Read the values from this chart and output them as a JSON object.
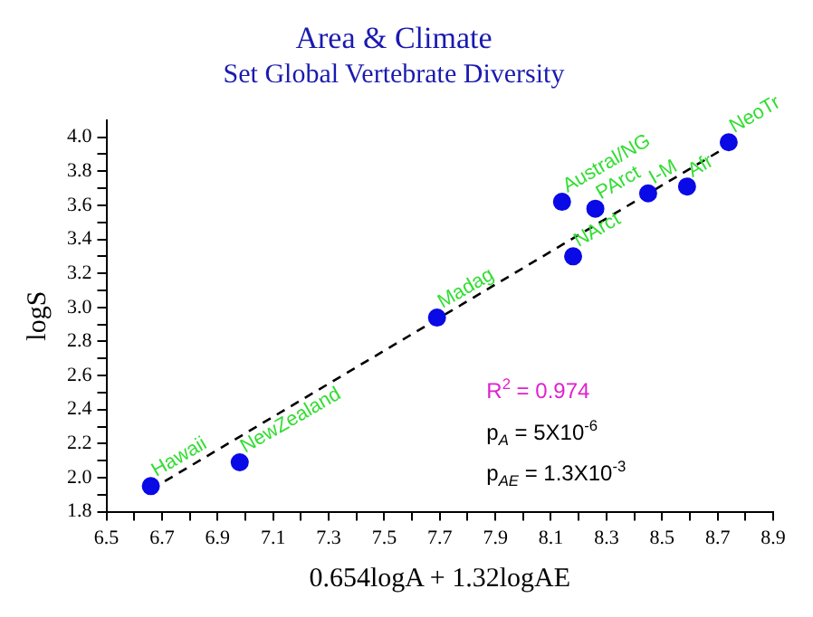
{
  "chart_data": {
    "type": "scatter",
    "title": "Area & Climate",
    "subtitle": "Set Global Vertebrate Diversity",
    "xlabel": "0.654logA + 1.32logAE",
    "ylabel": "logS",
    "series": [
      {
        "color": "#0a0ae6",
        "x": [
          6.66,
          6.98,
          7.69,
          8.14,
          8.18,
          8.26,
          8.45,
          8.59,
          8.74
        ],
        "values": [
          1.95,
          2.09,
          2.94,
          3.62,
          3.3,
          3.58,
          3.67,
          3.71,
          3.97
        ]
      },
      {
        "type": "line",
        "color": "#000000",
        "line_style": "dashed",
        "marker": "none",
        "x": [
          6.66,
          8.74
        ],
        "values": [
          1.93,
          3.95
        ]
      }
    ],
    "marker": "circle",
    "grid": false,
    "legend": false,
    "xlim": [
      6.5,
      8.9
    ],
    "ylim": [
      1.8,
      4.1
    ],
    "xticks": [
      6.5,
      {
        "value": 6.6,
        "label": null
      },
      6.7,
      {
        "value": 6.8,
        "label": null
      },
      6.9,
      {
        "value": 7.0,
        "label": null
      },
      7.1,
      {
        "value": 7.2,
        "label": null
      },
      7.3,
      {
        "value": 7.4,
        "label": null
      },
      7.5,
      {
        "value": 7.6,
        "label": null
      },
      7.7,
      {
        "value": 7.8,
        "label": null
      },
      7.9,
      {
        "value": 8.0,
        "label": null
      },
      8.1,
      {
        "value": 8.2,
        "label": null
      },
      8.3,
      {
        "value": 8.4,
        "label": null
      },
      8.5,
      {
        "value": 8.6,
        "label": null
      },
      8.7,
      {
        "value": 8.8,
        "label": null
      },
      8.9
    ],
    "yticks": [
      1.8,
      {
        "value": 1.9,
        "label": null
      },
      {
        "value": 2,
        "label": "2.0"
      },
      {
        "value": 2.1,
        "label": null
      },
      2.2,
      {
        "value": 2.3,
        "label": null
      },
      2.4,
      {
        "value": 2.5,
        "label": null
      },
      2.6,
      {
        "value": 2.7,
        "label": null
      },
      2.8,
      {
        "value": 2.9,
        "label": null
      },
      {
        "value": 3,
        "label": "3.0"
      },
      {
        "value": 3.1,
        "label": null
      },
      3.2,
      {
        "value": 3.3,
        "label": null
      },
      3.4,
      {
        "value": 3.5,
        "label": null
      },
      3.6,
      {
        "value": 3.7,
        "label": null
      },
      3.8,
      {
        "value": 3.9,
        "label": null
      },
      {
        "value": 4,
        "label": "4.0"
      }
    ],
    "annotations": [
      {
        "text": "Hawaii",
        "x": 6.66,
        "y": 1.95
      },
      {
        "text": "NewZealand",
        "x": 6.98,
        "y": 2.09
      },
      {
        "text": "Madag",
        "x": 7.69,
        "y": 2.94
      },
      {
        "text": "Austral/NG",
        "x": 8.14,
        "y": 3.62
      },
      {
        "text": "NArct",
        "x": 8.18,
        "y": 3.3
      },
      {
        "text": "PArct",
        "x": 8.26,
        "y": 3.58
      },
      {
        "text": "I-M",
        "x": 8.45,
        "y": 3.67
      },
      {
        "text": "Afr",
        "x": 8.59,
        "y": 3.71
      },
      {
        "text": "NeoTr",
        "x": 8.74,
        "y": 3.97
      },
      "R$^{2}$ = 0.974",
      "p$_{A}$ = 5X10$^{-6}$",
      "p$_{AE}$ = 1.3X10$^{-3}$"
    ]
  }
}
